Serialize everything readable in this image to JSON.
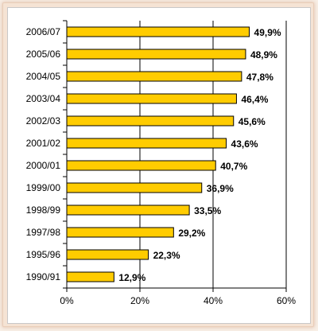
{
  "chart_data": {
    "type": "bar",
    "orientation": "horizontal",
    "categories": [
      "2006/07",
      "2005/06",
      "2004/05",
      "2003/04",
      "2002/03",
      "2001/02",
      "2000/01",
      "1999/00",
      "1998/99",
      "1997/98",
      "1995/96",
      "1990/91"
    ],
    "values": [
      49.9,
      48.9,
      47.8,
      46.4,
      45.6,
      43.6,
      40.7,
      36.9,
      33.5,
      29.2,
      22.3,
      12.9
    ],
    "value_labels": [
      "49,9%",
      "48,9%",
      "47,8%",
      "46,4%",
      "45,6%",
      "43,6%",
      "40,7%",
      "36,9%",
      "33,5%",
      "29,2%",
      "22,3%",
      "12,9%"
    ],
    "x_ticks": [
      "0%",
      "20%",
      "40%",
      "60%"
    ],
    "x_tick_values": [
      0,
      20,
      40,
      60
    ],
    "xlim": [
      0,
      60
    ],
    "grid": "vertical",
    "legend": "none",
    "title": "",
    "xlabel": "",
    "ylabel": "",
    "colors": {
      "bar_fill": "#ffcc00",
      "bar_stroke": "#000000",
      "grid": "#000000"
    }
  }
}
